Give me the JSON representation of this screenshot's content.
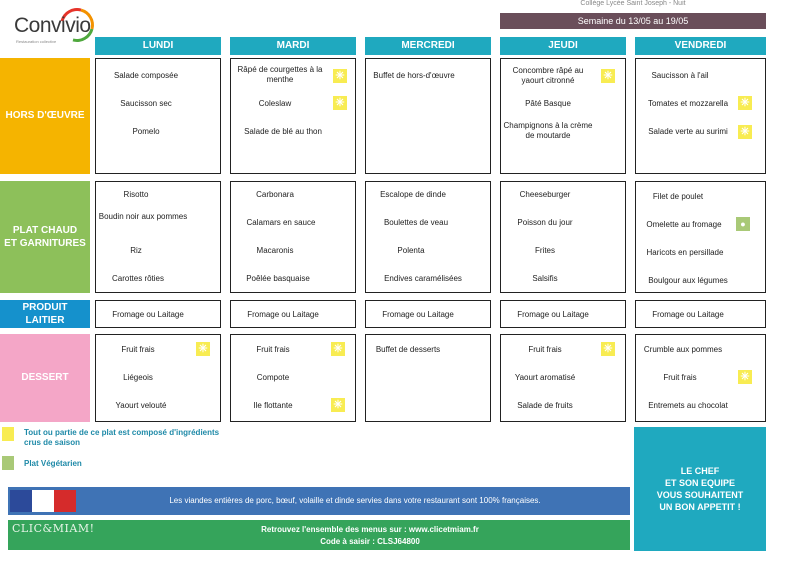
{
  "header": {
    "logo_text": "Convivio",
    "logo_sub": "Restauration collective",
    "top_title": "Collège Lycée Saint Joseph - Nuit",
    "week": "Semaine du 13/05 au 19/05"
  },
  "days": [
    "LUNDI",
    "MARDI",
    "MERCREDI",
    "JEUDI",
    "VENDREDI"
  ],
  "categories": {
    "hors": "HORS D'ŒUVRE",
    "plat": "PLAT CHAUD\nET GARNITURES",
    "lait": "PRODUIT LAITIER",
    "dessert": "DESSERT"
  },
  "menu": {
    "hors": [
      [
        "Salade composée",
        "Saucisson sec",
        "Pomelo"
      ],
      [
        "Râpé de courgettes à la menthe",
        "Coleslaw",
        "Salade de blé au thon"
      ],
      [
        "Buffet de hors-d'œuvre"
      ],
      [
        "Concombre râpé au yaourt citronné",
        "Pâté Basque",
        "Champignons à la crème de moutarde"
      ],
      [
        "Saucisson à l'ail",
        "Tomates et mozzarella",
        "Salade verte au surimi"
      ]
    ],
    "plat": [
      [
        "Risotto",
        "Boudin noir aux pommes",
        "Riz",
        "Carottes rôties"
      ],
      [
        "Carbonara",
        "Calamars en sauce",
        "Macaronis",
        "Poêlée basquaise"
      ],
      [
        "Escalope de dinde",
        "Boulettes de veau",
        "Polenta",
        "Endives caramélisées"
      ],
      [
        "Cheeseburger",
        "Poisson du jour",
        "Frites",
        "Salsifis"
      ],
      [
        "Filet de poulet",
        "Omelette au fromage",
        "Haricots en persillade",
        "Boulgour aux légumes"
      ]
    ],
    "lait": [
      "Fromage ou Laitage",
      "Fromage ou Laitage",
      "Fromage ou Laitage",
      "Fromage ou Laitage",
      "Fromage ou Laitage"
    ],
    "dessert": [
      [
        "Fruit frais",
        "Liégeois",
        "Yaourt velouté"
      ],
      [
        "Fruit frais",
        "Compote",
        "Ile flottante"
      ],
      [
        "Buffet de desserts"
      ],
      [
        "Fruit frais",
        "Yaourt aromatisé",
        "Salade de fruits"
      ],
      [
        "Crumble aux pommes",
        "Fruit frais",
        "Entremets au chocolat"
      ]
    ]
  },
  "legend": {
    "season": "Tout ou partie de ce plat est composé d'ingrédients crus de saison",
    "veg": "Plat Végétarien"
  },
  "footer": {
    "meat": "Les viandes entières de porc, bœuf, volaille et dinde servies dans votre restaurant sont 100% françaises.",
    "clic": "CLIC&MIAM!",
    "site": "Retrouvez l'ensemble des menus sur : www.clicetmiam.fr",
    "code": "Code à saisir : CLSJ64800"
  },
  "chef": [
    "LE CHEF",
    "ET SON EQUIPE",
    "VOUS SOUHAITENT",
    "UN BON APPETIT !"
  ],
  "colors": {
    "teal": "#1fa9bf",
    "orange": "#f5b400",
    "green": "#8dc05a",
    "blue": "#1591cc",
    "pink": "#f4a6c7",
    "week_bar": "#6a4e5a",
    "season_yellow": "#f8ec52",
    "veg_green": "#a9c977"
  }
}
